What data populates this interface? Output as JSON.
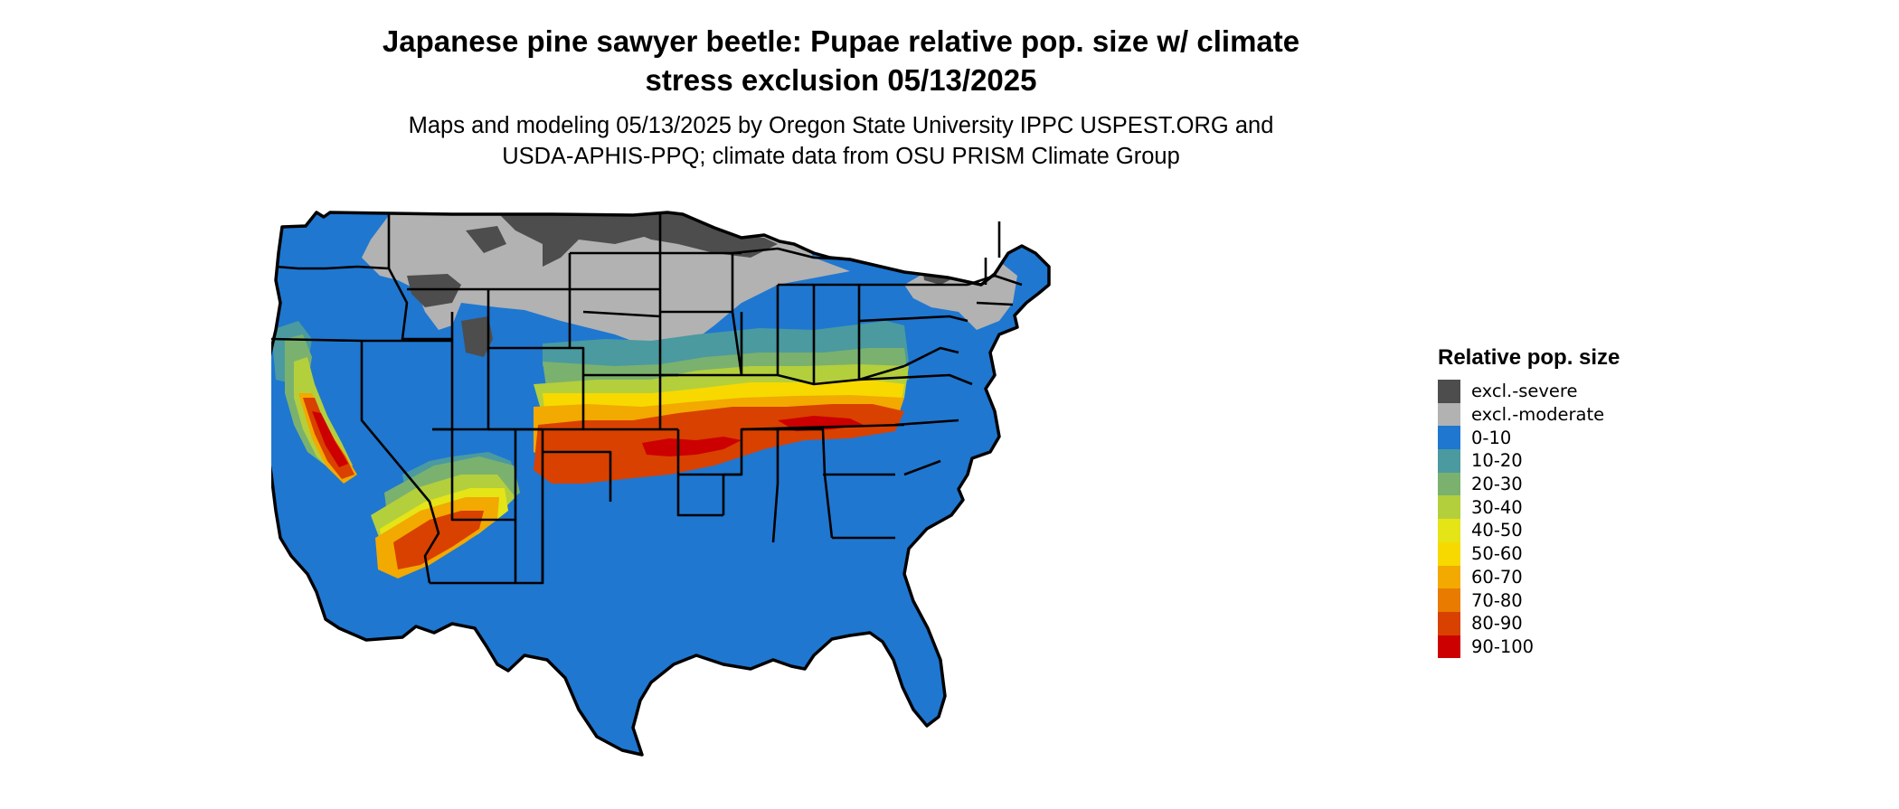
{
  "title": {
    "line1": "Japanese pine sawyer beetle: Pupae relative pop. size w/ climate",
    "line2": "stress exclusion 05/13/2025"
  },
  "subtitle": {
    "line1": "Maps and modeling 05/13/2025 by Oregon State University IPPC USPEST.ORG and",
    "line2": "USDA-APHIS-PPQ; climate data from OSU PRISM Climate Group"
  },
  "legend": {
    "title": "Relative pop. size",
    "items": [
      {
        "label": "excl.-severe",
        "color": "#4d4d4d"
      },
      {
        "label": "excl.-moderate",
        "color": "#b2b2b2"
      },
      {
        "label": "0-10",
        "color": "#1f77d0"
      },
      {
        "label": "10-20",
        "color": "#4a9aa0"
      },
      {
        "label": "20-30",
        "color": "#7bb16e"
      },
      {
        "label": "30-40",
        "color": "#b4cf3c"
      },
      {
        "label": "40-50",
        "color": "#e5e417"
      },
      {
        "label": "50-60",
        "color": "#f7d900"
      },
      {
        "label": "60-70",
        "color": "#f2a900"
      },
      {
        "label": "70-80",
        "color": "#e87b00"
      },
      {
        "label": "80-90",
        "color": "#d94100"
      },
      {
        "label": "90-100",
        "color": "#cc0000"
      }
    ]
  },
  "map": {
    "region": "conterminous-united-states",
    "borders_color": "#000000"
  }
}
